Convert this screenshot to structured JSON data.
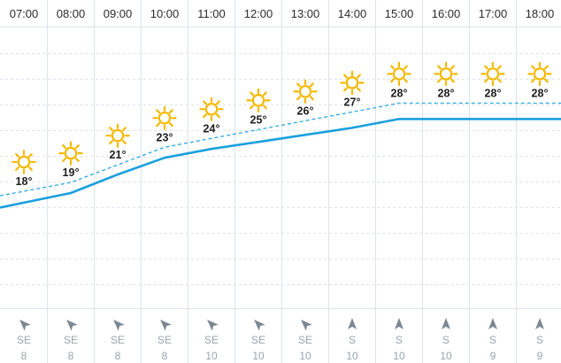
{
  "chart_data": {
    "type": "line",
    "categories": [
      "07:00",
      "08:00",
      "09:00",
      "10:00",
      "11:00",
      "12:00",
      "13:00",
      "14:00",
      "15:00",
      "16:00",
      "17:00",
      "18:00"
    ],
    "series": [
      {
        "values": [
          18,
          19,
          21,
          23,
          24,
          25,
          26,
          27,
          28,
          28,
          28,
          28
        ],
        "style": "dashed",
        "color": "#29a8e0"
      },
      {
        "values": [
          16.7,
          17.8,
          19.9,
          21.8,
          22.8,
          23.6,
          24.4,
          25.2,
          26.2,
          26.2,
          26.2,
          26.2
        ],
        "style": "solid",
        "color": "#1aa0dd"
      }
    ],
    "temperature_labels": [
      "18°",
      "19°",
      "21°",
      "23°",
      "24°",
      "25°",
      "26°",
      "27°",
      "28°",
      "28°",
      "28°",
      "28°"
    ],
    "weather_icons": [
      "sun-icon",
      "sun-icon",
      "sun-icon",
      "sun-icon",
      "sun-icon",
      "sun-icon",
      "sun-icon",
      "sun-icon",
      "sun-icon",
      "sun-icon",
      "sun-icon",
      "sun-icon"
    ],
    "wind": {
      "directions": [
        "SE",
        "SE",
        "SE",
        "SE",
        "SE",
        "SE",
        "SE",
        "S",
        "S",
        "S",
        "S",
        "S"
      ],
      "speeds": [
        "8",
        "8",
        "8",
        "8",
        "10",
        "10",
        "10",
        "10",
        "10",
        "10",
        "9",
        "9"
      ]
    },
    "grid": true,
    "colors": {
      "sun": "#f5b800",
      "line": "#1aa0dd",
      "grid": "#dde3ea",
      "arrow": "#7e8893"
    }
  }
}
